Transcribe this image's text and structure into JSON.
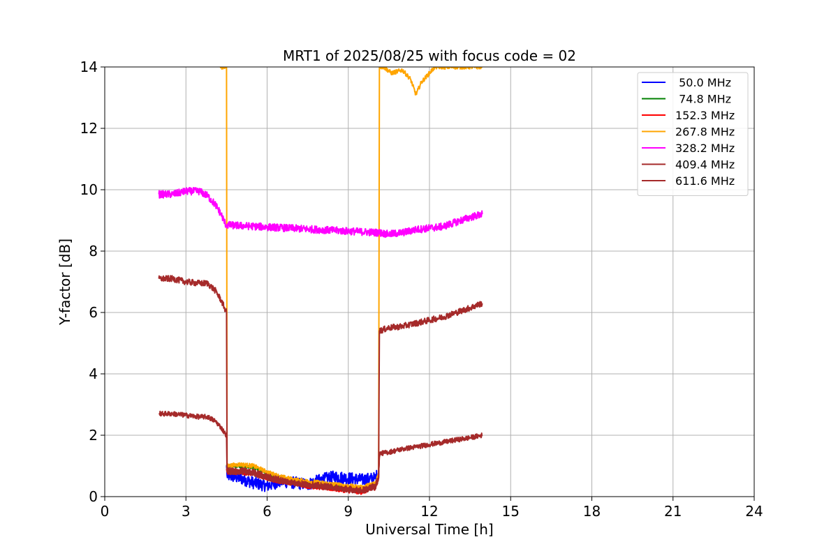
{
  "chart_data": {
    "type": "line",
    "title": "MRT1 of 2025/08/25 with focus code = 02",
    "xlabel": "Universal Time [h]",
    "ylabel": "Y-factor [dB]",
    "xlim": [
      0,
      24
    ],
    "ylim": [
      0,
      14
    ],
    "xticks": [
      0,
      3,
      6,
      9,
      12,
      15,
      18,
      21,
      24
    ],
    "yticks": [
      0,
      2,
      4,
      6,
      8,
      10,
      12,
      14
    ],
    "grid": true,
    "legend_position": "top-right",
    "series": [
      {
        "name": " 50.0 MHz",
        "color": "#0000ff",
        "x": [
          4.5,
          4.52,
          5.0,
          5.5,
          6.0,
          6.5,
          7.0,
          7.5,
          8.0,
          8.5,
          9.0,
          9.5,
          10.0,
          10.12,
          10.15
        ],
        "y": [
          1.0,
          0.7,
          0.6,
          0.45,
          0.35,
          0.5,
          0.45,
          0.4,
          0.55,
          0.65,
          0.6,
          0.55,
          0.6,
          0.8,
          1.4
        ],
        "noise": 0.2
      },
      {
        "name": " 74.8 MHz",
        "color": "#008000",
        "x": [
          4.5,
          4.52,
          5.0,
          5.5,
          6.0,
          6.5,
          7.0,
          7.5,
          8.0,
          8.5,
          9.0,
          9.5,
          10.0,
          10.12,
          10.15
        ],
        "y": [
          1.0,
          1.0,
          1.0,
          0.95,
          0.75,
          0.6,
          0.5,
          0.45,
          0.4,
          0.35,
          0.3,
          0.25,
          0.4,
          0.7,
          1.4
        ],
        "noise": 0.06
      },
      {
        "name": "152.3 MHz",
        "color": "#ff0000",
        "x": [
          4.5,
          4.52,
          5.0,
          5.5,
          6.0,
          6.5,
          7.0,
          7.5,
          8.0,
          8.5,
          9.0,
          9.5,
          10.0,
          10.12,
          10.15
        ],
        "y": [
          0.9,
          0.8,
          0.8,
          0.75,
          0.6,
          0.5,
          0.45,
          0.35,
          0.3,
          0.25,
          0.2,
          0.15,
          0.3,
          0.6,
          1.4
        ],
        "noise": 0.08
      },
      {
        "name": "267.8 MHz",
        "color": "#ffa500",
        "x": [
          4.25,
          4.45,
          4.5,
          4.52,
          5.0,
          5.5,
          6.0,
          6.5,
          7.0,
          7.5,
          8.0,
          8.5,
          9.0,
          9.5,
          10.0,
          10.12,
          10.15,
          10.3,
          10.6,
          11.0,
          11.3,
          11.5,
          11.7,
          12.0,
          12.2,
          12.5,
          13.0,
          13.5,
          13.8,
          13.95
        ],
        "y": [
          14.0,
          14.0,
          14.0,
          1.0,
          1.05,
          1.0,
          0.8,
          0.65,
          0.55,
          0.5,
          0.45,
          0.4,
          0.35,
          0.3,
          0.45,
          0.75,
          14.0,
          14.0,
          13.8,
          13.9,
          13.6,
          13.1,
          13.5,
          13.8,
          14.0,
          14.0,
          14.0,
          14.0,
          14.0,
          14.0
        ],
        "noise": 0.07
      },
      {
        "name": "328.2 MHz",
        "color": "#ff00ff",
        "x": [
          2.0,
          2.5,
          3.0,
          3.5,
          3.8,
          4.1,
          4.3,
          4.45,
          4.5,
          10.15,
          10.5,
          11.0,
          11.5,
          12.0,
          12.5,
          13.0,
          13.5,
          13.95
        ],
        "y": [
          9.85,
          9.85,
          9.95,
          9.95,
          9.8,
          9.5,
          9.2,
          8.9,
          8.85,
          8.6,
          8.55,
          8.6,
          8.7,
          8.75,
          8.8,
          8.95,
          9.1,
          9.2
        ],
        "noise": 0.12
      },
      {
        "name": "409.4 MHz",
        "color": "#a52a2a",
        "x": [
          2.0,
          2.5,
          3.0,
          3.5,
          3.8,
          4.1,
          4.3,
          4.45,
          4.5,
          4.52,
          5.0,
          5.5,
          6.0,
          6.5,
          7.0,
          7.5,
          8.0,
          8.5,
          9.0,
          9.5,
          10.0,
          10.12,
          10.15,
          10.5,
          11.0,
          11.5,
          12.0,
          12.5,
          13.0,
          13.5,
          13.95
        ],
        "y": [
          7.1,
          7.1,
          7.0,
          6.95,
          6.95,
          6.7,
          6.4,
          6.1,
          6.0,
          0.85,
          0.85,
          0.8,
          0.65,
          0.55,
          0.45,
          0.4,
          0.35,
          0.3,
          0.25,
          0.2,
          0.35,
          0.65,
          5.4,
          5.5,
          5.55,
          5.65,
          5.75,
          5.85,
          6.0,
          6.15,
          6.3
        ],
        "noise": 0.1
      },
      {
        "name": "611.6 MHz",
        "color": "#a52a2a",
        "x": [
          2.0,
          2.5,
          3.0,
          3.5,
          3.8,
          4.1,
          4.3,
          4.45,
          4.5,
          4.52,
          5.0,
          5.5,
          6.0,
          6.5,
          7.0,
          7.5,
          8.0,
          8.5,
          9.0,
          9.5,
          10.0,
          10.12,
          10.15,
          10.5,
          11.0,
          11.5,
          12.0,
          12.5,
          13.0,
          13.5,
          13.95
        ],
        "y": [
          2.7,
          2.7,
          2.65,
          2.6,
          2.6,
          2.45,
          2.25,
          2.05,
          2.0,
          0.8,
          0.8,
          0.75,
          0.6,
          0.5,
          0.42,
          0.38,
          0.32,
          0.28,
          0.22,
          0.18,
          0.3,
          0.6,
          1.4,
          1.45,
          1.55,
          1.62,
          1.7,
          1.77,
          1.85,
          1.92,
          2.0
        ],
        "noise": 0.08
      }
    ]
  }
}
